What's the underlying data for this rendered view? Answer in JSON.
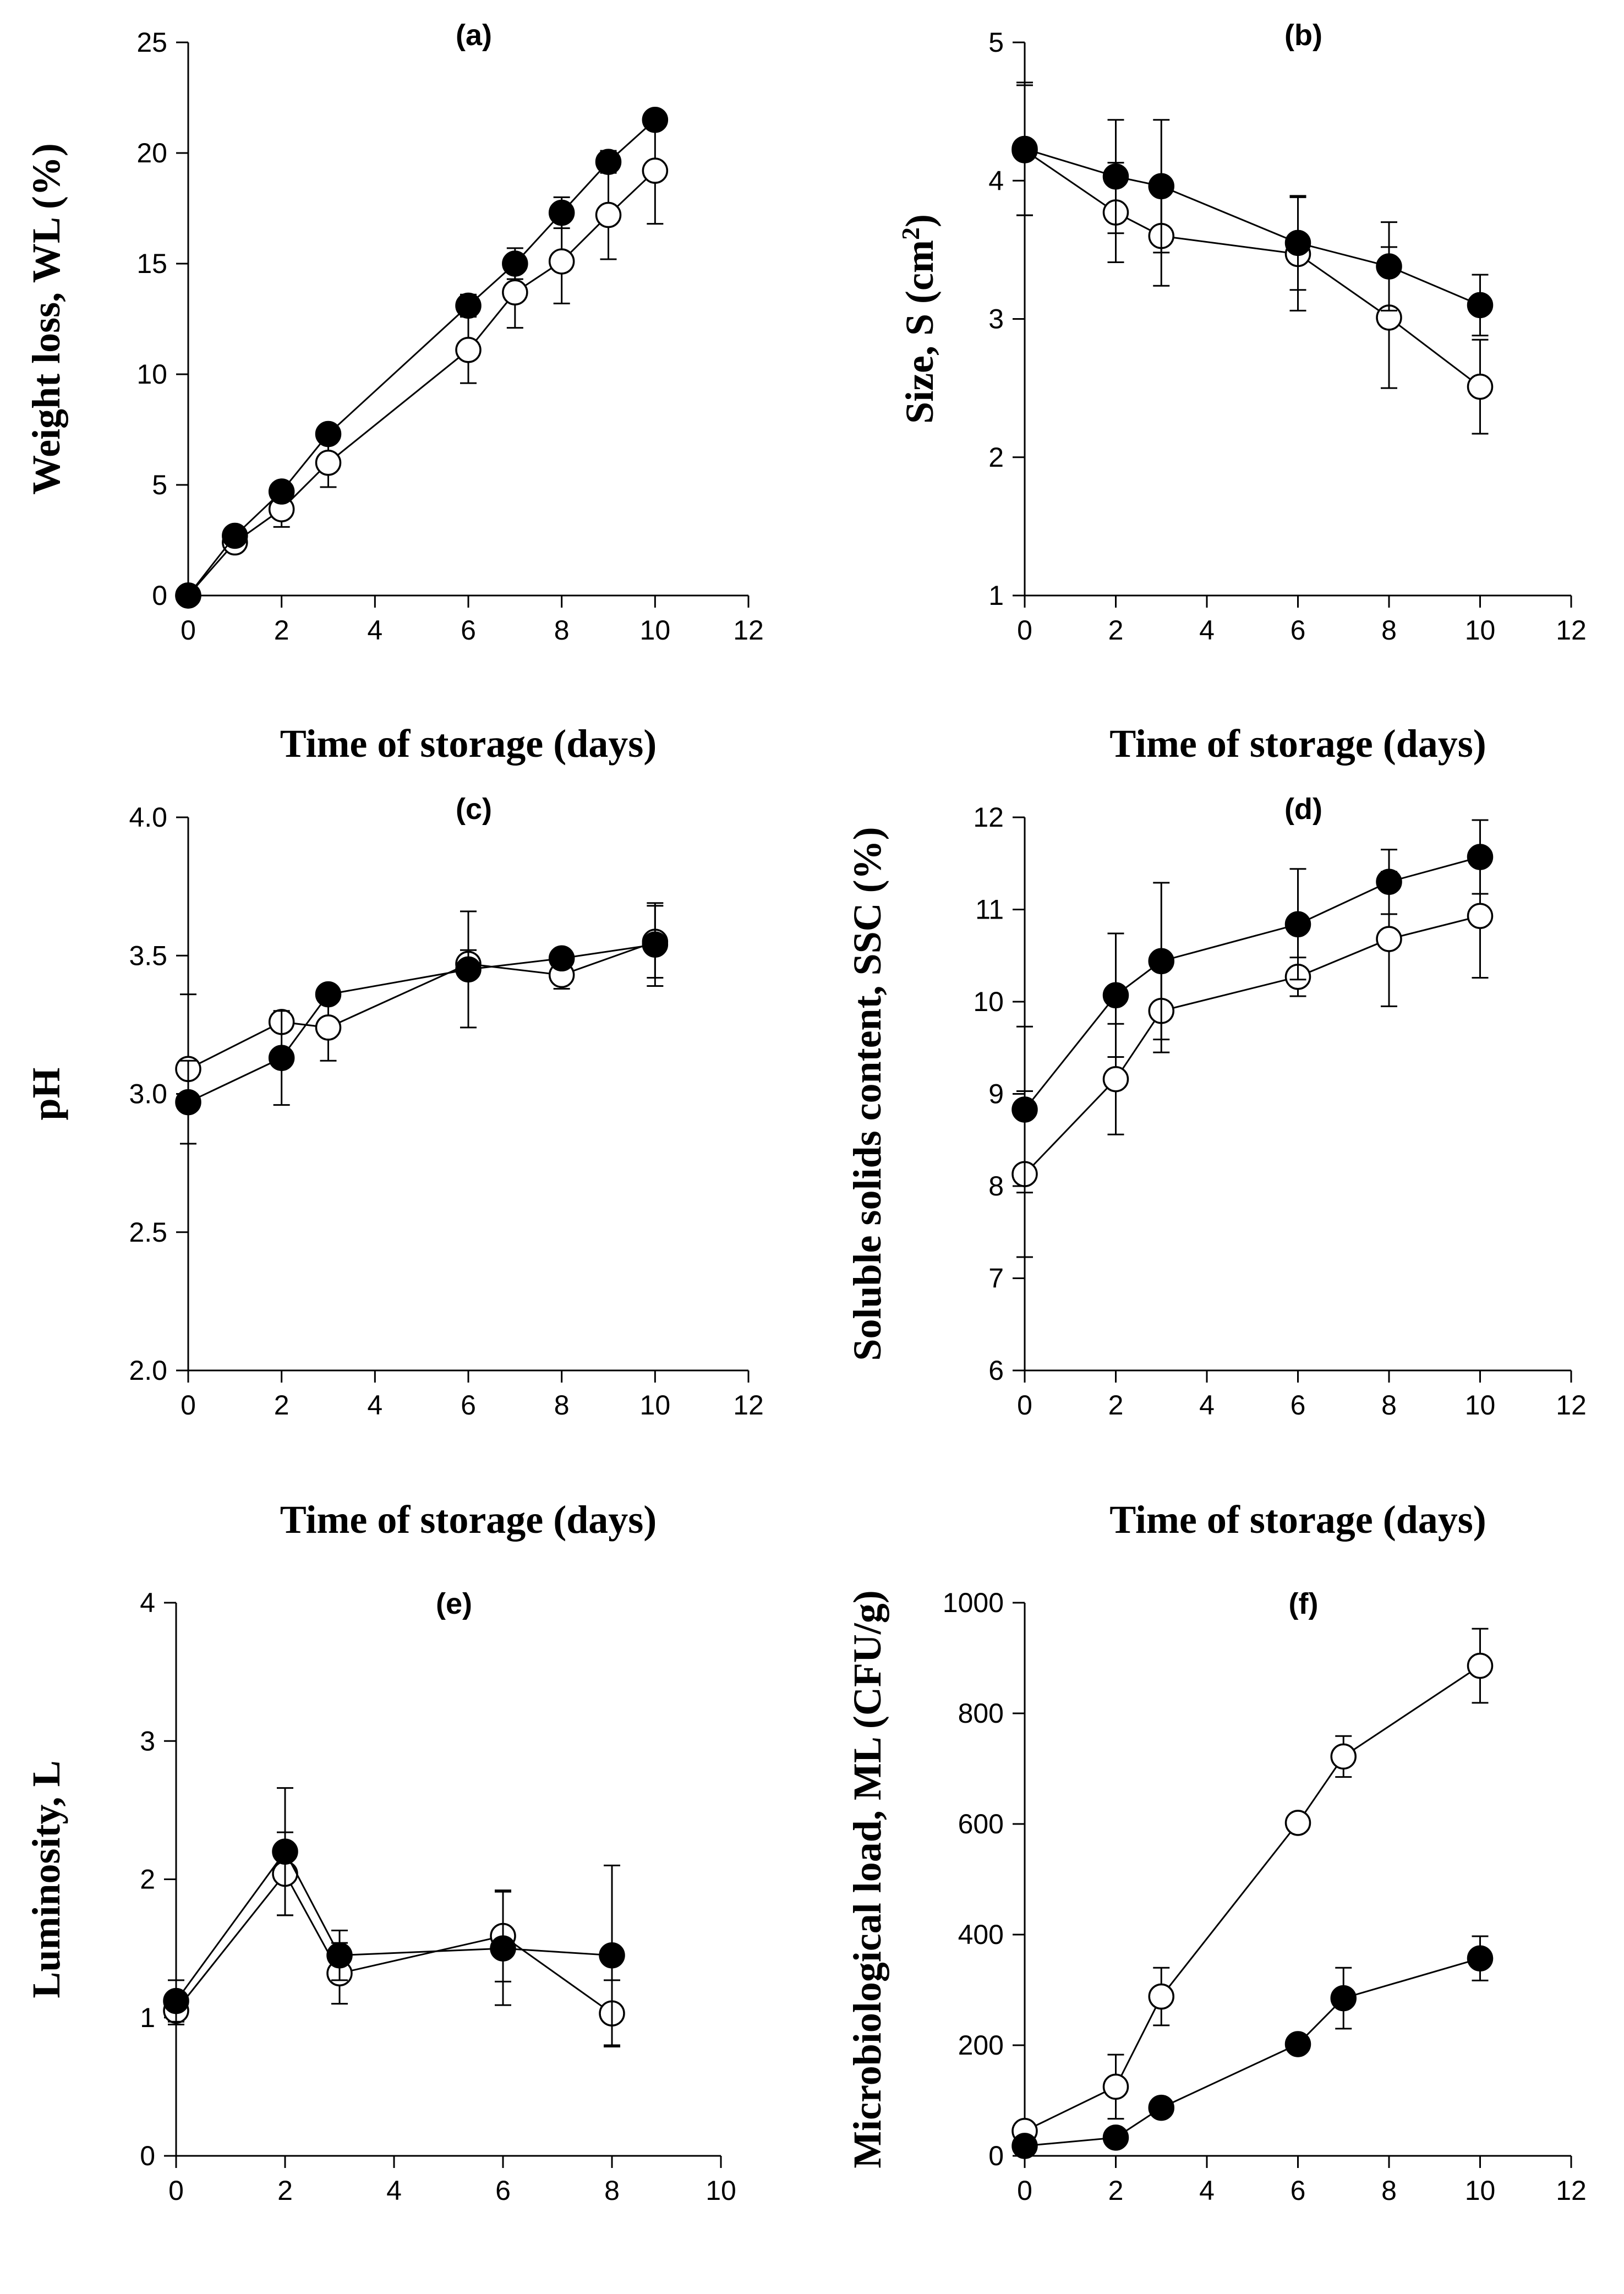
{
  "chart_data": [
    {
      "id": "a",
      "type": "line",
      "title": "(a)",
      "xlabel": "Time of storage (days)",
      "ylabel": "Weight loss, WL (%)",
      "xlim": [
        0,
        12
      ],
      "ylim": [
        0,
        25
      ],
      "xticks": [
        0,
        2,
        4,
        6,
        8,
        10,
        12
      ],
      "yticks": [
        0,
        5,
        10,
        15,
        20,
        25
      ],
      "ytick_labels": [
        "0",
        "5",
        "10",
        "15",
        "20",
        "25"
      ],
      "series": [
        {
          "name": "open",
          "marker": "open",
          "x": [
            0,
            1,
            2,
            3,
            6,
            7,
            8,
            9,
            10
          ],
          "y": [
            0,
            2.4,
            3.9,
            6.0,
            11.1,
            13.7,
            15.1,
            17.2,
            19.2
          ],
          "err": [
            0,
            0.4,
            0.8,
            1.1,
            1.5,
            1.6,
            1.9,
            2.0,
            2.4
          ]
        },
        {
          "name": "filled",
          "marker": "filled",
          "x": [
            0,
            1,
            2,
            3,
            6,
            7,
            8,
            9,
            10
          ],
          "y": [
            0,
            2.7,
            4.7,
            7.3,
            13.1,
            15.0,
            17.3,
            19.6,
            21.5
          ],
          "err": [
            0,
            0.2,
            0.3,
            0.3,
            0.5,
            0.7,
            0.7,
            0.5,
            0.3
          ]
        }
      ]
    },
    {
      "id": "b",
      "type": "line",
      "title": "(b)",
      "xlabel": "Time of storage (days)",
      "ylabel": "Size, S (cm²)",
      "xlim": [
        0,
        12
      ],
      "ylim": [
        1,
        5
      ],
      "xticks": [
        0,
        2,
        4,
        6,
        8,
        10,
        12
      ],
      "yticks": [
        1,
        2,
        3,
        4,
        5
      ],
      "ytick_labels": [
        "1",
        "2",
        "3",
        "4",
        "5"
      ],
      "series": [
        {
          "name": "open",
          "marker": "open",
          "x": [
            0,
            2,
            3,
            6,
            8,
            10
          ],
          "y": [
            4.22,
            3.77,
            3.6,
            3.47,
            3.01,
            2.51
          ],
          "err": [
            0.47,
            0.36,
            0.36,
            0.41,
            0.51,
            0.34
          ]
        },
        {
          "name": "filled",
          "marker": "filled",
          "x": [
            0,
            2,
            3,
            6,
            8,
            10
          ],
          "y": [
            4.23,
            4.03,
            3.96,
            3.55,
            3.38,
            3.1
          ],
          "err": [
            0.48,
            0.41,
            0.48,
            0.34,
            0.32,
            0.22
          ]
        }
      ]
    },
    {
      "id": "c",
      "type": "line",
      "title": "(c)",
      "xlabel": "Time of storage (days)",
      "ylabel": "pH",
      "xlim": [
        0,
        12
      ],
      "ylim": [
        2.0,
        4.0
      ],
      "xticks": [
        0,
        2,
        4,
        6,
        8,
        10,
        12
      ],
      "yticks": [
        2.0,
        2.5,
        3.0,
        3.5,
        4.0
      ],
      "ytick_labels": [
        "2.0",
        "2.5",
        "3.0",
        "3.5",
        "4.0"
      ],
      "series": [
        {
          "name": "open",
          "marker": "open",
          "x": [
            0,
            2,
            3,
            6,
            8,
            10
          ],
          "y": [
            3.09,
            3.26,
            3.24,
            3.47,
            3.43,
            3.55
          ],
          "err": [
            0.27,
            0.03,
            0.12,
            0.05,
            0.05,
            0.13
          ]
        },
        {
          "name": "filled",
          "marker": "filled",
          "x": [
            0,
            2,
            3,
            6,
            8,
            10
          ],
          "y": [
            2.97,
            3.13,
            3.36,
            3.45,
            3.49,
            3.54
          ],
          "err": [
            0.15,
            0.17,
            0.03,
            0.21,
            0.03,
            0.15
          ]
        }
      ]
    },
    {
      "id": "d",
      "type": "line",
      "title": "(d)",
      "xlabel": "Time of storage (days)",
      "ylabel": "Soluble solids content, SSC (%)",
      "xlim": [
        0,
        12
      ],
      "ylim": [
        6,
        12
      ],
      "xticks": [
        0,
        2,
        4,
        6,
        8,
        10,
        12
      ],
      "yticks": [
        6,
        7,
        8,
        9,
        10,
        11,
        12
      ],
      "ytick_labels": [
        "6",
        "7",
        "8",
        "9",
        "10",
        "11",
        "12"
      ],
      "series": [
        {
          "name": "open",
          "marker": "open",
          "x": [
            0,
            2,
            3,
            6,
            8,
            10
          ],
          "y": [
            8.13,
            9.16,
            9.9,
            10.27,
            10.68,
            10.93
          ],
          "err": [
            0.9,
            0.6,
            0.45,
            0.21,
            0.73,
            0.67
          ]
        },
        {
          "name": "filled",
          "marker": "filled",
          "x": [
            0,
            2,
            3,
            6,
            8,
            10
          ],
          "y": [
            8.83,
            10.07,
            10.44,
            10.84,
            11.3,
            11.57
          ],
          "err": [
            0.9,
            0.67,
            0.85,
            0.6,
            0.35,
            0.4
          ]
        }
      ]
    },
    {
      "id": "e",
      "type": "line",
      "title": "(e)",
      "xlabel": "",
      "ylabel": "Luminosity, L",
      "xlim": [
        0,
        10
      ],
      "ylim": [
        0,
        4
      ],
      "xticks": [
        0,
        2,
        4,
        6,
        8,
        10
      ],
      "yticks": [
        0,
        1,
        2,
        3,
        4
      ],
      "ytick_labels": [
        "0",
        "1",
        "2",
        "3",
        "4"
      ],
      "series": [
        {
          "name": "open",
          "marker": "open",
          "x": [
            0,
            2,
            3,
            6,
            8
          ],
          "y": [
            1.05,
            2.04,
            1.32,
            1.59,
            1.03
          ],
          "err": [
            0.1,
            0.3,
            0.22,
            0.33,
            0.24
          ]
        },
        {
          "name": "filled",
          "marker": "filled",
          "x": [
            0,
            2,
            3,
            6,
            8
          ],
          "y": [
            1.12,
            2.2,
            1.45,
            1.5,
            1.45
          ],
          "err": [
            0.15,
            0.46,
            0.18,
            0.41,
            0.65
          ]
        }
      ]
    },
    {
      "id": "f",
      "type": "line",
      "title": "(f)",
      "xlabel": "",
      "ylabel": "Microbiological load, ML (CFU/g)",
      "xlim": [
        0,
        12
      ],
      "ylim": [
        0,
        1000
      ],
      "xticks": [
        0,
        2,
        4,
        6,
        8,
        10,
        12
      ],
      "yticks": [
        0,
        200,
        400,
        600,
        800,
        1000
      ],
      "ytick_labels": [
        "0",
        "200",
        "400",
        "600",
        "800",
        "1000"
      ],
      "series": [
        {
          "name": "open",
          "marker": "open",
          "x": [
            0,
            2,
            3,
            6,
            7,
            10
          ],
          "y": [
            45,
            125,
            288,
            602,
            722,
            886
          ],
          "err": [
            0,
            58,
            52,
            0,
            37,
            67
          ]
        },
        {
          "name": "filled",
          "marker": "filled",
          "x": [
            0,
            2,
            3,
            6,
            7,
            10
          ],
          "y": [
            18,
            33,
            87,
            202,
            285,
            357
          ],
          "err": [
            0,
            0,
            0,
            0,
            55,
            40
          ]
        }
      ]
    }
  ]
}
